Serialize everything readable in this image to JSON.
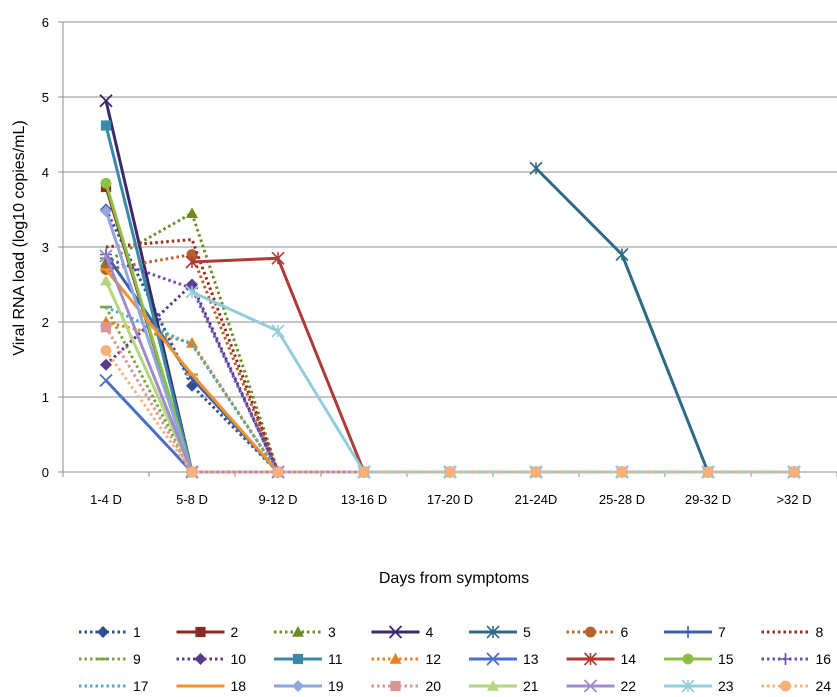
{
  "chart_data": {
    "type": "line",
    "title": "",
    "xlabel": "Days from symptoms",
    "ylabel": "Viral RNA load (log10 copies/mL)",
    "ylim": [
      0,
      6
    ],
    "yticks": [
      "0",
      "1",
      "2",
      "3",
      "4",
      "5",
      "6"
    ],
    "grid": "horizontal",
    "legend_position": "bottom",
    "categories": [
      "1-4 D",
      "5-8 D",
      "9-12 D",
      "13-16 D",
      "17-20 D",
      "21-24D",
      "25-28 D",
      "29-32 D",
      ">32 D"
    ],
    "series": [
      {
        "name": "1",
        "color": "#2E4F8F",
        "dash": "dot",
        "marker": "diamond",
        "values": [
          3.5,
          1.15,
          0,
          0,
          0,
          0,
          0,
          0,
          0
        ]
      },
      {
        "name": "2",
        "color": "#8B2A22",
        "dash": "solid",
        "marker": "square",
        "values": [
          3.8,
          0,
          0,
          0,
          0,
          0,
          0,
          0,
          0
        ]
      },
      {
        "name": "3",
        "color": "#6B8E23",
        "dash": "dot",
        "marker": "triangle",
        "values": [
          2.8,
          3.45,
          0,
          0,
          0,
          0,
          0,
          0,
          0
        ]
      },
      {
        "name": "4",
        "color": "#3B2A6B",
        "dash": "solid",
        "marker": "x",
        "values": [
          4.95,
          0,
          0,
          0,
          0,
          0,
          0,
          0,
          0
        ]
      },
      {
        "name": "5",
        "color": "#2E6A86",
        "dash": "solid",
        "marker": "star",
        "values": [
          null,
          null,
          null,
          null,
          null,
          4.05,
          2.9,
          0,
          0
        ]
      },
      {
        "name": "6",
        "color": "#B8602A",
        "dash": "dot",
        "marker": "circle",
        "values": [
          2.7,
          2.9,
          0,
          0,
          0,
          0,
          0,
          0,
          0
        ]
      },
      {
        "name": "7",
        "color": "#3A5FAF",
        "dash": "solid",
        "marker": "plus",
        "values": [
          2.9,
          1.25,
          0,
          0,
          0,
          0,
          0,
          0,
          0
        ]
      },
      {
        "name": "8",
        "color": "#9B2A22",
        "dash": "dot",
        "marker": "none",
        "values": [
          3.0,
          3.1,
          0,
          0,
          0,
          0,
          0,
          0,
          0
        ]
      },
      {
        "name": "9",
        "color": "#7AA33A",
        "dash": "dot",
        "marker": "dash",
        "values": [
          2.2,
          0,
          0,
          0,
          0,
          0,
          0,
          0,
          0
        ]
      },
      {
        "name": "10",
        "color": "#5A3A8B",
        "dash": "dot",
        "marker": "diamond",
        "values": [
          1.43,
          2.5,
          0,
          0,
          0,
          0,
          0,
          0,
          0
        ]
      },
      {
        "name": "11",
        "color": "#3A89A8",
        "dash": "solid",
        "marker": "square",
        "values": [
          4.62,
          0,
          0,
          0,
          0,
          0,
          0,
          0,
          0
        ]
      },
      {
        "name": "12",
        "color": "#E6821E",
        "dash": "dot",
        "marker": "triangle",
        "values": [
          2.0,
          1.72,
          0,
          0,
          0,
          0,
          0,
          0,
          0
        ]
      },
      {
        "name": "13",
        "color": "#4A6FC8",
        "dash": "solid",
        "marker": "x",
        "values": [
          1.22,
          0,
          0,
          0,
          0,
          0,
          0,
          0,
          0
        ]
      },
      {
        "name": "14",
        "color": "#B03A35",
        "dash": "solid",
        "marker": "star",
        "values": [
          null,
          2.8,
          2.85,
          0,
          0,
          0,
          0,
          0,
          0
        ]
      },
      {
        "name": "15",
        "color": "#8CC045",
        "dash": "solid",
        "marker": "circle",
        "values": [
          3.85,
          0,
          0,
          0,
          0,
          0,
          0,
          0,
          0
        ]
      },
      {
        "name": "16",
        "color": "#6B4FAF",
        "dash": "dot",
        "marker": "plus",
        "values": [
          2.85,
          2.45,
          0,
          0,
          0,
          0,
          0,
          0,
          0
        ]
      },
      {
        "name": "17",
        "color": "#4BACC6",
        "dash": "dot",
        "marker": "none",
        "values": [
          2.2,
          1.7,
          0,
          0,
          0,
          0,
          0,
          0,
          0
        ]
      },
      {
        "name": "18",
        "color": "#F0922E",
        "dash": "solid",
        "marker": "dash",
        "values": [
          2.7,
          1.3,
          0,
          0,
          0,
          0,
          0,
          0,
          0
        ]
      },
      {
        "name": "19",
        "color": "#8FA7DE",
        "dash": "solid",
        "marker": "diamond",
        "values": [
          3.48,
          0,
          0,
          0,
          0,
          0,
          0,
          0,
          0
        ]
      },
      {
        "name": "20",
        "color": "#D99694",
        "dash": "dot",
        "marker": "square",
        "values": [
          1.93,
          0,
          0,
          0,
          0,
          0,
          0,
          0,
          0
        ]
      },
      {
        "name": "21",
        "color": "#B3D67F",
        "dash": "solid",
        "marker": "triangle",
        "values": [
          2.55,
          0,
          0,
          0,
          0,
          0,
          0,
          0,
          0
        ]
      },
      {
        "name": "22",
        "color": "#A08CC8",
        "dash": "solid",
        "marker": "x",
        "values": [
          2.88,
          0,
          0,
          0,
          0,
          0,
          0,
          0,
          0
        ]
      },
      {
        "name": "23",
        "color": "#93CDDD",
        "dash": "solid",
        "marker": "star",
        "values": [
          null,
          2.4,
          1.88,
          0,
          0,
          0,
          0,
          0,
          0
        ]
      },
      {
        "name": "24",
        "color": "#F7B07A",
        "dash": "dot",
        "marker": "circle",
        "values": [
          1.62,
          0,
          0,
          0,
          0,
          0,
          0,
          0,
          0
        ]
      }
    ]
  }
}
